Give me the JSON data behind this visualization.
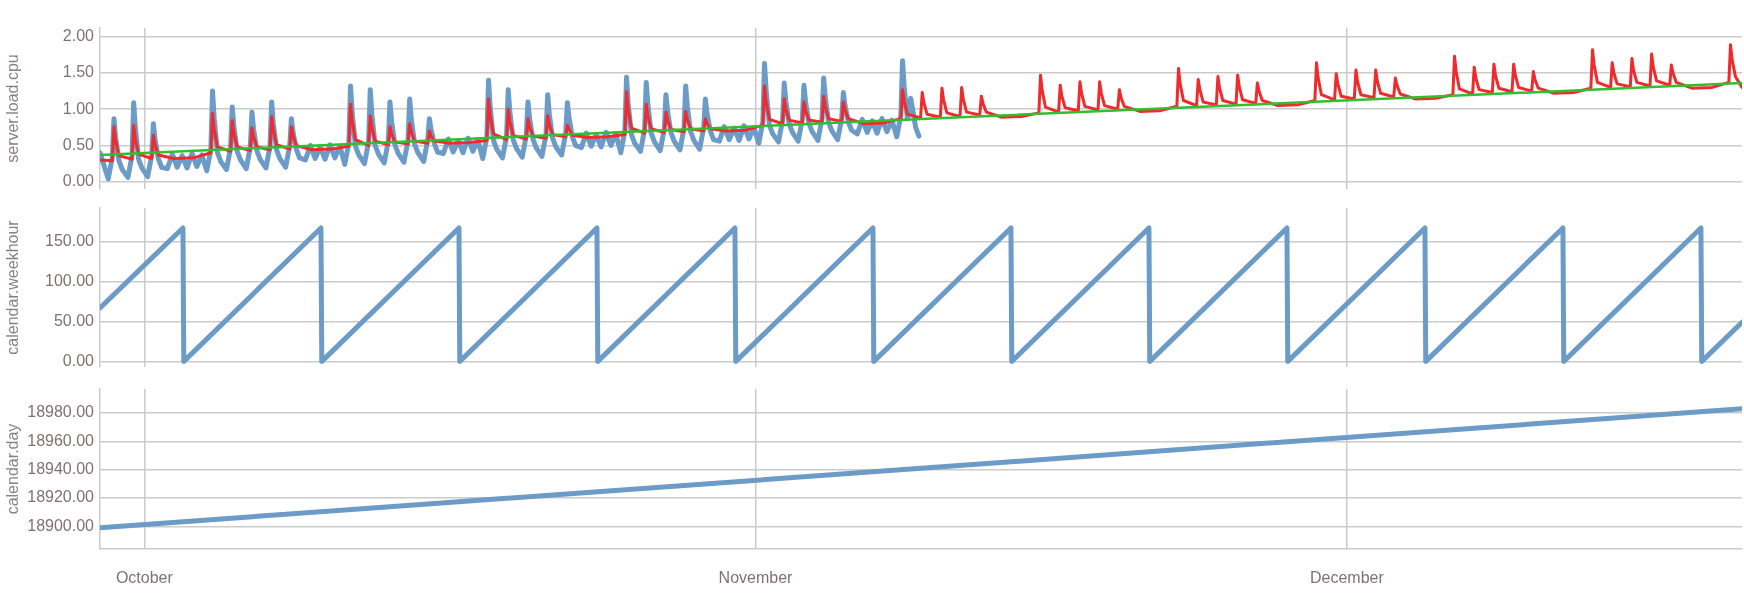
{
  "chart_data": [
    {
      "type": "line",
      "ylabel": "server.load.cpu",
      "xlim": [
        "--09-28T18:00",
        "--12-21T01:00"
      ],
      "xticks": [
        {
          "value": "--10-01",
          "label": null
        },
        {
          "value": "--11-01",
          "label": null
        },
        {
          "value": "--12-01",
          "label": null
        }
      ],
      "ylim": [
        -0.1,
        2.12
      ],
      "yticks": [
        {
          "value": 0,
          "label": "0.00"
        },
        {
          "value": 0.5,
          "label": "0.50"
        },
        {
          "value": 1,
          "label": "1.00"
        },
        {
          "value": 1.5,
          "label": "1.50"
        },
        {
          "value": 2,
          "label": "2.00"
        }
      ],
      "grid": true,
      "tick_labels": "y",
      "series": [
        {
          "color": "#6b9bc6",
          "x": [
            "--09-28T18:00",
            "--09-29T04:00",
            "--09-29T09:00",
            "--09-29T11:00",
            "--09-29T13:00",
            "--09-29T17:00",
            "--09-29T21:00",
            "--09-30T04:00",
            "--09-30T09:00",
            "--09-30T11:00",
            "--09-30T13:00",
            "--09-30T17:00",
            "--09-30T21:00",
            "--10-01T04:00",
            "--10-01T09:00",
            "--10-01T11:00",
            "--10-01T13:00",
            "--10-01T17:00",
            "--10-01T21:00",
            "--10-02T04:00",
            "--10-02T10:00",
            "--10-02T16:00",
            "--10-02T22:00",
            "--10-03T04:00",
            "--10-03T10:00",
            "--10-03T16:00",
            "--10-03T22:00",
            "--10-04T04:00",
            "--10-04T09:00",
            "--10-04T11:00",
            "--10-04T13:00",
            "--10-04T17:00",
            "--10-04T21:00",
            "--10-05T04:00",
            "--10-05T09:00",
            "--10-05T11:00",
            "--10-05T13:00",
            "--10-05T17:00",
            "--10-05T21:00",
            "--10-06T04:00",
            "--10-06T09:00",
            "--10-06T11:00",
            "--10-06T13:00",
            "--10-06T17:00",
            "--10-06T21:00",
            "--10-07T04:00",
            "--10-07T09:00",
            "--10-07T11:00",
            "--10-07T13:00",
            "--10-07T17:00",
            "--10-07T21:00",
            "--10-08T04:00",
            "--10-08T09:00",
            "--10-08T11:00",
            "--10-08T13:00",
            "--10-08T17:00",
            "--10-08T21:00",
            "--10-09T04:00",
            "--10-09T10:00",
            "--10-09T16:00",
            "--10-09T22:00",
            "--10-10T04:00",
            "--10-10T10:00",
            "--10-10T16:00",
            "--10-10T22:00",
            "--10-11T04:00",
            "--10-11T09:00",
            "--10-11T11:00",
            "--10-11T13:00",
            "--10-11T17:00",
            "--10-11T21:00",
            "--10-12T04:00",
            "--10-12T09:00",
            "--10-12T11:00",
            "--10-12T13:00",
            "--10-12T17:00",
            "--10-12T21:00",
            "--10-13T04:00",
            "--10-13T09:00",
            "--10-13T11:00",
            "--10-13T13:00",
            "--10-13T17:00",
            "--10-13T21:00",
            "--10-14T04:00",
            "--10-14T09:00",
            "--10-14T11:00",
            "--10-14T13:00",
            "--10-14T17:00",
            "--10-14T21:00",
            "--10-15T04:00",
            "--10-15T09:00",
            "--10-15T11:00",
            "--10-15T13:00",
            "--10-15T17:00",
            "--10-15T21:00",
            "--10-16T04:00",
            "--10-16T10:00",
            "--10-16T16:00",
            "--10-16T22:00",
            "--10-17T04:00",
            "--10-17T10:00",
            "--10-17T16:00",
            "--10-17T22:00",
            "--10-18T04:00",
            "--10-18T09:00",
            "--10-18T11:00",
            "--10-18T13:00",
            "--10-18T17:00",
            "--10-18T21:00",
            "--10-19T04:00",
            "--10-19T09:00",
            "--10-19T11:00",
            "--10-19T13:00",
            "--10-19T17:00",
            "--10-19T21:00",
            "--10-20T04:00",
            "--10-20T09:00",
            "--10-20T11:00",
            "--10-20T13:00",
            "--10-20T17:00",
            "--10-20T21:00",
            "--10-21T04:00",
            "--10-21T09:00",
            "--10-21T11:00",
            "--10-21T13:00",
            "--10-21T17:00",
            "--10-21T21:00",
            "--10-22T04:00",
            "--10-22T09:00",
            "--10-22T11:00",
            "--10-22T13:00",
            "--10-22T17:00",
            "--10-22T21:00",
            "--10-23T04:00",
            "--10-23T10:00",
            "--10-23T16:00",
            "--10-23T22:00",
            "--10-24T04:00",
            "--10-24T10:00",
            "--10-24T16:00",
            "--10-24T22:00",
            "--10-25T04:00",
            "--10-25T09:00",
            "--10-25T11:00",
            "--10-25T13:00",
            "--10-25T17:00",
            "--10-25T21:00",
            "--10-26T04:00",
            "--10-26T09:00",
            "--10-26T11:00",
            "--10-26T13:00",
            "--10-26T17:00",
            "--10-26T21:00",
            "--10-27T04:00",
            "--10-27T09:00",
            "--10-27T11:00",
            "--10-27T13:00",
            "--10-27T17:00",
            "--10-27T21:00",
            "--10-28T04:00",
            "--10-28T09:00",
            "--10-28T11:00",
            "--10-28T13:00",
            "--10-28T17:00",
            "--10-28T21:00",
            "--10-29T04:00",
            "--10-29T09:00",
            "--10-29T11:00",
            "--10-29T13:00",
            "--10-29T17:00",
            "--10-29T21:00",
            "--10-30T04:00",
            "--10-30T10:00",
            "--10-30T16:00",
            "--10-30T22:00",
            "--10-31T04:00",
            "--10-31T10:00",
            "--10-31T16:00",
            "--10-31T22:00",
            "--11-01T04:00",
            "--11-01T09:00",
            "--11-01T11:00",
            "--11-01T13:00",
            "--11-01T17:00",
            "--11-01T21:00",
            "--11-02T04:00",
            "--11-02T09:00",
            "--11-02T11:00",
            "--11-02T13:00",
            "--11-02T17:00",
            "--11-02T21:00",
            "--11-03T04:00",
            "--11-03T09:00",
            "--11-03T11:00",
            "--11-03T13:00",
            "--11-03T17:00",
            "--11-03T21:00",
            "--11-04T04:00",
            "--11-04T09:00",
            "--11-04T11:00",
            "--11-04T13:00",
            "--11-04T17:00",
            "--11-04T21:00",
            "--11-05T04:00",
            "--11-05T09:00",
            "--11-05T11:00",
            "--11-05T13:00",
            "--11-05T17:00",
            "--11-05T21:00",
            "--11-06T04:00",
            "--11-06T10:00",
            "--11-06T16:00",
            "--11-06T22:00",
            "--11-07T04:00",
            "--11-07T10:00",
            "--11-07T16:00",
            "--11-07T22:00",
            "--11-08T04:00",
            "--11-08T09:00",
            "--11-08T11:00",
            "--11-08T13:00",
            "--11-08T17:00",
            "--11-08T21:00",
            "--11-09T03:00",
            "--11-09T07:00"
          ],
          "values": [
            0.4,
            0.04,
            0.34,
            0.87,
            0.61,
            0.29,
            0.17,
            0.06,
            0.36,
            1.09,
            0.74,
            0.31,
            0.19,
            0.07,
            0.37,
            0.8,
            0.58,
            0.32,
            0.2,
            0.18,
            0.38,
            0.2,
            0.36,
            0.19,
            0.39,
            0.21,
            0.37,
            0.15,
            0.45,
            1.25,
            0.87,
            0.4,
            0.28,
            0.17,
            0.47,
            1.03,
            0.76,
            0.42,
            0.3,
            0.18,
            0.48,
            0.96,
            0.72,
            0.43,
            0.31,
            0.19,
            0.49,
            1.1,
            0.8,
            0.44,
            0.32,
            0.2,
            0.5,
            0.87,
            0.68,
            0.45,
            0.33,
            0.3,
            0.5,
            0.32,
            0.48,
            0.31,
            0.51,
            0.33,
            0.49,
            0.24,
            0.54,
            1.32,
            0.95,
            0.49,
            0.37,
            0.25,
            0.55,
            1.27,
            0.92,
            0.5,
            0.38,
            0.26,
            0.56,
            1.1,
            0.83,
            0.51,
            0.39,
            0.27,
            0.57,
            1.14,
            0.86,
            0.52,
            0.4,
            0.28,
            0.58,
            0.87,
            0.72,
            0.53,
            0.41,
            0.39,
            0.59,
            0.41,
            0.57,
            0.4,
            0.6,
            0.42,
            0.58,
            0.32,
            0.62,
            1.4,
            1.03,
            0.57,
            0.45,
            0.33,
            0.63,
            1.27,
            0.96,
            0.58,
            0.46,
            0.34,
            0.64,
            1.1,
            0.87,
            0.59,
            0.47,
            0.35,
            0.65,
            1.2,
            0.93,
            0.6,
            0.48,
            0.37,
            0.67,
            1.09,
            0.88,
            0.62,
            0.5,
            0.47,
            0.67,
            0.49,
            0.65,
            0.48,
            0.68,
            0.5,
            0.66,
            0.4,
            0.7,
            1.44,
            1.08,
            0.65,
            0.53,
            0.42,
            0.72,
            1.37,
            1.06,
            0.67,
            0.55,
            0.43,
            0.73,
            1.2,
            0.97,
            0.68,
            0.56,
            0.44,
            0.74,
            1.32,
            1.04,
            0.69,
            0.57,
            0.45,
            0.75,
            1.14,
            0.94,
            0.7,
            0.58,
            0.56,
            0.76,
            0.58,
            0.74,
            0.57,
            0.77,
            0.59,
            0.75,
            0.53,
            0.83,
            1.63,
            1.25,
            0.78,
            0.66,
            0.55,
            0.85,
            1.36,
            1.11,
            0.8,
            0.68,
            0.56,
            0.86,
            1.33,
            1.1,
            0.81,
            0.69,
            0.57,
            0.87,
            1.43,
            1.16,
            0.82,
            0.7,
            0.58,
            0.88,
            1.23,
            1.05,
            0.83,
            0.71,
            0.66,
            0.86,
            0.68,
            0.84,
            0.67,
            0.87,
            0.69,
            0.85,
            0.62,
            0.92,
            1.67,
            1.31,
            0.87,
            1.15,
            0.75,
            0.63
          ]
        },
        {
          "color": "#ef2b2d",
          "x": [
            "--09-28T18:00",
            "--09-29T09:00",
            "--09-29T11:00",
            "--09-29T13:00",
            "--09-29T17:00",
            "--09-30T09:00",
            "--09-30T11:00",
            "--09-30T13:00",
            "--09-30T17:00",
            "--10-01T09:00",
            "--10-01T11:00",
            "--10-01T13:00",
            "--10-01T17:00",
            "--10-02T12:00",
            "--10-03T12:00",
            "--10-04T09:00",
            "--10-04T11:00",
            "--10-04T13:00",
            "--10-04T17:00",
            "--10-05T09:00",
            "--10-05T11:00",
            "--10-05T13:00",
            "--10-05T17:00",
            "--10-06T09:00",
            "--10-06T11:00",
            "--10-06T13:00",
            "--10-06T17:00",
            "--10-07T09:00",
            "--10-07T11:00",
            "--10-07T13:00",
            "--10-07T17:00",
            "--10-08T09:00",
            "--10-08T11:00",
            "--10-08T13:00",
            "--10-08T17:00",
            "--10-09T12:00",
            "--10-10T12:00",
            "--10-11T09:00",
            "--10-11T11:00",
            "--10-11T13:00",
            "--10-11T17:00",
            "--10-12T09:00",
            "--10-12T11:00",
            "--10-12T13:00",
            "--10-12T17:00",
            "--10-13T09:00",
            "--10-13T11:00",
            "--10-13T13:00",
            "--10-13T17:00",
            "--10-14T09:00",
            "--10-14T11:00",
            "--10-14T13:00",
            "--10-14T17:00",
            "--10-15T09:00",
            "--10-15T11:00",
            "--10-15T13:00",
            "--10-15T17:00",
            "--10-16T12:00",
            "--10-17T12:00",
            "--10-18T09:00",
            "--10-18T11:00",
            "--10-18T13:00",
            "--10-18T17:00",
            "--10-19T09:00",
            "--10-19T11:00",
            "--10-19T13:00",
            "--10-19T17:00",
            "--10-20T09:00",
            "--10-20T11:00",
            "--10-20T13:00",
            "--10-20T17:00",
            "--10-21T09:00",
            "--10-21T11:00",
            "--10-21T13:00",
            "--10-21T17:00",
            "--10-22T09:00",
            "--10-22T11:00",
            "--10-22T13:00",
            "--10-22T17:00",
            "--10-23T12:00",
            "--10-24T12:00",
            "--10-25T09:00",
            "--10-25T11:00",
            "--10-25T13:00",
            "--10-25T17:00",
            "--10-26T09:00",
            "--10-26T11:00",
            "--10-26T13:00",
            "--10-26T17:00",
            "--10-27T09:00",
            "--10-27T11:00",
            "--10-27T13:00",
            "--10-27T17:00",
            "--10-28T09:00",
            "--10-28T11:00",
            "--10-28T13:00",
            "--10-28T17:00",
            "--10-29T09:00",
            "--10-29T11:00",
            "--10-29T13:00",
            "--10-29T17:00",
            "--10-30T12:00",
            "--10-31T12:00",
            "--11-01T09:00",
            "--11-01T11:00",
            "--11-01T13:00",
            "--11-01T17:00",
            "--11-02T09:00",
            "--11-02T11:00",
            "--11-02T13:00",
            "--11-02T17:00",
            "--11-03T09:00",
            "--11-03T11:00",
            "--11-03T13:00",
            "--11-03T17:00",
            "--11-04T09:00",
            "--11-04T11:00",
            "--11-04T13:00",
            "--11-04T17:00",
            "--11-05T09:00",
            "--11-05T11:00",
            "--11-05T13:00",
            "--11-05T17:00",
            "--11-06T12:00",
            "--11-07T12:00",
            "--11-08T09:00",
            "--11-08T11:00",
            "--11-08T13:00",
            "--11-08T17:00",
            "--11-09T09:00",
            "--11-09T11:00",
            "--11-09T13:00",
            "--11-09T17:00",
            "--11-10T09:00",
            "--11-10T11:00",
            "--11-10T13:00",
            "--11-10T17:00",
            "--11-11T09:00",
            "--11-11T11:00",
            "--11-11T13:00",
            "--11-11T17:00",
            "--11-12T09:00",
            "--11-12T11:00",
            "--11-12T13:00",
            "--11-12T17:00",
            "--11-13T12:00",
            "--11-14T12:00",
            "--11-15T09:00",
            "--11-15T11:00",
            "--11-15T13:00",
            "--11-15T17:00",
            "--11-16T09:00",
            "--11-16T11:00",
            "--11-16T13:00",
            "--11-16T17:00",
            "--11-17T09:00",
            "--11-17T11:00",
            "--11-17T13:00",
            "--11-17T17:00",
            "--11-18T09:00",
            "--11-18T11:00",
            "--11-18T13:00",
            "--11-18T17:00",
            "--11-19T09:00",
            "--11-19T11:00",
            "--11-19T13:00",
            "--11-19T17:00",
            "--11-20T12:00",
            "--11-21T12:00",
            "--11-22T09:00",
            "--11-22T11:00",
            "--11-22T13:00",
            "--11-22T17:00",
            "--11-23T09:00",
            "--11-23T11:00",
            "--11-23T13:00",
            "--11-23T17:00",
            "--11-24T09:00",
            "--11-24T11:00",
            "--11-24T13:00",
            "--11-24T17:00",
            "--11-25T09:00",
            "--11-25T11:00",
            "--11-25T13:00",
            "--11-25T17:00",
            "--11-26T09:00",
            "--11-26T11:00",
            "--11-26T13:00",
            "--11-26T17:00",
            "--11-27T12:00",
            "--11-28T12:00",
            "--11-29T09:00",
            "--11-29T11:00",
            "--11-29T13:00",
            "--11-29T17:00",
            "--11-30T09:00",
            "--11-30T11:00",
            "--11-30T13:00",
            "--11-30T17:00",
            "--12-01T09:00",
            "--12-01T11:00",
            "--12-01T13:00",
            "--12-01T17:00",
            "--12-02T09:00",
            "--12-02T11:00",
            "--12-02T13:00",
            "--12-02T17:00",
            "--12-03T09:00",
            "--12-03T11:00",
            "--12-03T13:00",
            "--12-03T17:00",
            "--12-04T12:00",
            "--12-05T12:00",
            "--12-06T09:00",
            "--12-06T11:00",
            "--12-06T13:00",
            "--12-06T17:00",
            "--12-07T09:00",
            "--12-07T11:00",
            "--12-07T13:00",
            "--12-07T17:00",
            "--12-08T09:00",
            "--12-08T11:00",
            "--12-08T13:00",
            "--12-08T17:00",
            "--12-09T09:00",
            "--12-09T11:00",
            "--12-09T13:00",
            "--12-09T17:00",
            "--12-10T09:00",
            "--12-10T11:00",
            "--12-10T13:00",
            "--12-10T17:00",
            "--12-11T12:00",
            "--12-12T12:00",
            "--12-13T09:00",
            "--12-13T11:00",
            "--12-13T13:00",
            "--12-13T17:00",
            "--12-14T09:00",
            "--12-14T11:00",
            "--12-14T13:00",
            "--12-14T17:00",
            "--12-15T09:00",
            "--12-15T11:00",
            "--12-15T13:00",
            "--12-15T17:00",
            "--12-16T09:00",
            "--12-16T11:00",
            "--12-16T13:00",
            "--12-16T17:00",
            "--12-17T09:00",
            "--12-17T11:00",
            "--12-17T13:00",
            "--12-17T17:00",
            "--12-18T12:00",
            "--12-19T12:00",
            "--12-20T09:00",
            "--12-20T11:00",
            "--12-20T13:00",
            "--12-20T17:00",
            "--12-21T01:00"
          ],
          "values": [
            0.3,
            0.29,
            0.76,
            0.57,
            0.36,
            0.31,
            0.78,
            0.59,
            0.38,
            0.32,
            0.64,
            0.51,
            0.37,
            0.32,
            0.33,
            0.4,
            0.94,
            0.72,
            0.48,
            0.42,
            0.84,
            0.67,
            0.48,
            0.43,
            0.74,
            0.62,
            0.48,
            0.44,
            0.9,
            0.72,
            0.51,
            0.45,
            0.76,
            0.64,
            0.5,
            0.44,
            0.45,
            0.49,
            1.07,
            0.84,
            0.58,
            0.5,
            0.91,
            0.75,
            0.56,
            0.51,
            0.76,
            0.66,
            0.55,
            0.52,
            0.8,
            0.69,
            0.56,
            0.53,
            0.7,
            0.63,
            0.56,
            0.53,
            0.54,
            0.57,
            1.14,
            0.91,
            0.66,
            0.58,
            1.0,
            0.83,
            0.64,
            0.59,
            0.87,
            0.76,
            0.63,
            0.6,
            0.91,
            0.79,
            0.65,
            0.62,
            0.78,
            0.72,
            0.64,
            0.61,
            0.62,
            0.65,
            1.24,
            1.0,
            0.74,
            0.67,
            1.07,
            0.91,
            0.73,
            0.68,
            0.96,
            0.85,
            0.72,
            0.69,
            0.97,
            0.86,
            0.73,
            0.7,
            0.87,
            0.8,
            0.73,
            0.7,
            0.71,
            0.78,
            1.32,
            1.1,
            0.86,
            0.8,
            1.14,
            1.0,
            0.85,
            0.81,
            1.1,
            0.98,
            0.85,
            0.82,
            1.18,
            1.04,
            0.87,
            0.83,
            1.1,
            0.99,
            0.87,
            0.8,
            0.81,
            0.87,
            1.27,
            1.11,
            0.93,
            0.88,
            1.23,
            1.09,
            0.93,
            0.89,
            1.29,
            1.13,
            0.95,
            0.9,
            1.3,
            1.14,
            0.96,
            0.92,
            1.18,
            1.08,
            0.96,
            0.89,
            0.9,
            0.95,
            1.47,
            1.26,
            1.03,
            0.96,
            1.33,
            1.18,
            1.02,
            0.98,
            1.38,
            1.22,
            1.04,
            0.99,
            1.38,
            1.22,
            1.05,
            1.0,
            1.27,
            1.16,
            1.04,
            0.97,
            0.98,
            1.04,
            1.56,
            1.35,
            1.12,
            1.05,
            1.41,
            1.27,
            1.1,
            1.06,
            1.45,
            1.29,
            1.12,
            1.07,
            1.47,
            1.31,
            1.13,
            1.08,
            1.36,
            1.25,
            1.12,
            1.05,
            1.06,
            1.12,
            1.64,
            1.43,
            1.2,
            1.13,
            1.49,
            1.35,
            1.18,
            1.14,
            1.54,
            1.38,
            1.2,
            1.16,
            1.54,
            1.39,
            1.22,
            1.17,
            1.43,
            1.33,
            1.21,
            1.14,
            1.15,
            1.2,
            1.73,
            1.52,
            1.28,
            1.21,
            1.58,
            1.43,
            1.27,
            1.23,
            1.62,
            1.46,
            1.29,
            1.24,
            1.62,
            1.47,
            1.3,
            1.25,
            1.52,
            1.41,
            1.29,
            1.22,
            1.23,
            1.29,
            1.82,
            1.61,
            1.37,
            1.3,
            1.64,
            1.5,
            1.35,
            1.31,
            1.7,
            1.54,
            1.37,
            1.32,
            1.76,
            1.58,
            1.39,
            1.33,
            1.61,
            1.5,
            1.37,
            1.29,
            1.3,
            1.37,
            1.89,
            1.68,
            1.45,
            1.3
          ]
        },
        {
          "type": "line",
          "color": "#2fbf2f",
          "x": [
            "--09-28T18:00",
            "--12-21T01:00"
          ],
          "values": [
            0.37,
            1.36
          ]
        }
      ]
    },
    {
      "type": "line",
      "ylabel": "calendar.weekhour",
      "xlim": [
        "--09-28T18:00",
        "--12-21T01:00"
      ],
      "xticks": [
        {
          "value": "--10-01",
          "label": null
        },
        {
          "value": "--11-01",
          "label": null
        },
        {
          "value": "--12-01",
          "label": null
        }
      ],
      "ylim": [
        -7,
        192
      ],
      "yticks": [
        {
          "value": 0,
          "label": "0.00"
        },
        {
          "value": 50,
          "label": "50.00"
        },
        {
          "value": 100,
          "label": "100.00"
        },
        {
          "value": 150,
          "label": "150.00"
        }
      ],
      "grid": true,
      "tick_labels": "y",
      "series": [
        {
          "color": "#6b9bc6",
          "x": [
            "--09-28T18:00",
            "--10-02T23:00",
            "--10-03T00:00",
            "--10-09T23:00",
            "--10-10T00:00",
            "--10-16T23:00",
            "--10-17T00:00",
            "--10-23T23:00",
            "--10-24T00:00",
            "--10-30T23:00",
            "--10-31T00:00",
            "--11-06T23:00",
            "--11-07T00:00",
            "--11-13T23:00",
            "--11-14T00:00",
            "--11-20T23:00",
            "--11-21T00:00",
            "--11-27T23:00",
            "--11-28T00:00",
            "--12-04T23:00",
            "--12-05T00:00",
            "--12-11T23:00",
            "--12-12T00:00",
            "--12-18T23:00",
            "--12-19T00:00",
            "--12-21T01:00"
          ],
          "values": [
            67,
            167,
            0,
            167,
            0,
            167,
            0,
            167,
            0,
            167,
            0,
            167,
            0,
            167,
            0,
            167,
            0,
            167,
            0,
            167,
            0,
            167,
            0,
            167,
            0,
            49
          ]
        }
      ]
    },
    {
      "type": "line",
      "ylabel": "calendar.day",
      "xlim": [
        "--09-28T18:00",
        "--12-21T01:00"
      ],
      "xticks": [
        {
          "value": "--10-01",
          "label": "October"
        },
        {
          "value": "--11-01",
          "label": "November"
        },
        {
          "value": "--12-01",
          "label": "December"
        }
      ],
      "ylim": [
        18884,
        18997
      ],
      "yticks": [
        {
          "value": 18900,
          "label": "18900.00"
        },
        {
          "value": 18920,
          "label": "18920.00"
        },
        {
          "value": 18940,
          "label": "18940.00"
        },
        {
          "value": 18960,
          "label": "18960.00"
        },
        {
          "value": 18980,
          "label": "18980.00"
        }
      ],
      "grid": true,
      "series": [
        {
          "color": "#6b9bc6",
          "x": [
            "--09-28T18:00",
            "--12-21T01:00"
          ],
          "values": [
            18899,
            18983
          ]
        }
      ]
    }
  ]
}
